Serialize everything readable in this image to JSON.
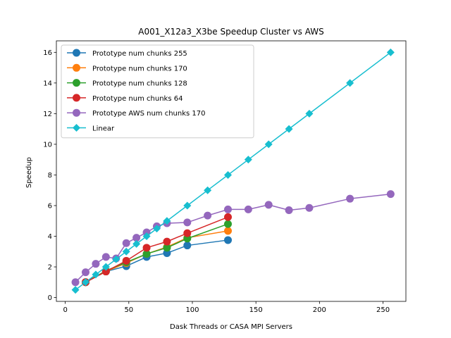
{
  "chart_data": {
    "type": "line",
    "title": "A001_X12a3_X3be Speedup Cluster vs AWS",
    "xlabel": "Dask Threads or CASA MPI Servers",
    "ylabel": "Speedup",
    "xlim": [
      -7,
      268
    ],
    "ylim": [
      -0.25,
      16.75
    ],
    "xticks": [
      0,
      50,
      100,
      150,
      200,
      250
    ],
    "yticks": [
      0,
      2,
      4,
      6,
      8,
      10,
      12,
      14,
      16
    ],
    "grid": false,
    "legend_position": "top-left",
    "series": [
      {
        "name": "Prototype num chunks 255",
        "color": "#1f77b4",
        "marker": "circle",
        "x": [
          16,
          32,
          48,
          64,
          80,
          96,
          128
        ],
        "y": [
          1.0,
          1.7,
          2.05,
          2.65,
          2.9,
          3.4,
          3.75
        ]
      },
      {
        "name": "Prototype num chunks 170",
        "color": "#ff7f0e",
        "marker": "circle",
        "x": [
          16,
          32,
          48,
          64,
          80,
          96,
          128
        ],
        "y": [
          1.0,
          1.7,
          2.25,
          2.85,
          3.3,
          3.9,
          4.35
        ]
      },
      {
        "name": "Prototype num chunks 128",
        "color": "#2ca02c",
        "marker": "circle",
        "x": [
          16,
          32,
          48,
          64,
          80,
          96,
          128
        ],
        "y": [
          1.0,
          1.75,
          2.3,
          2.85,
          3.25,
          3.85,
          4.8
        ]
      },
      {
        "name": "Prototype num chunks 64",
        "color": "#d62728",
        "marker": "circle",
        "x": [
          16,
          32,
          48,
          64,
          80,
          96,
          128
        ],
        "y": [
          1.0,
          1.7,
          2.4,
          3.25,
          3.65,
          4.2,
          5.25
        ]
      },
      {
        "name": "Prototype AWS num chunks 170",
        "color": "#9467bd",
        "marker": "circle",
        "x": [
          8,
          16,
          24,
          32,
          40,
          48,
          56,
          64,
          72,
          80,
          96,
          112,
          128,
          144,
          160,
          176,
          192,
          224,
          256
        ],
        "y": [
          1.0,
          1.65,
          2.2,
          2.65,
          2.55,
          3.55,
          3.9,
          4.25,
          4.65,
          4.85,
          4.9,
          5.35,
          5.75,
          5.75,
          6.05,
          5.7,
          5.85,
          6.45,
          6.75
        ]
      },
      {
        "name": "Linear",
        "color": "#17becf",
        "marker": "diamond",
        "x": [
          8,
          16,
          24,
          32,
          40,
          48,
          56,
          64,
          72,
          80,
          96,
          112,
          128,
          144,
          160,
          176,
          192,
          224,
          256
        ],
        "y": [
          0.5,
          1.0,
          1.5,
          2.0,
          2.5,
          3.0,
          3.5,
          4.0,
          4.5,
          5.0,
          6.0,
          7.0,
          8.0,
          9.0,
          10.0,
          11.0,
          12.0,
          14.0,
          16.0
        ]
      }
    ]
  }
}
